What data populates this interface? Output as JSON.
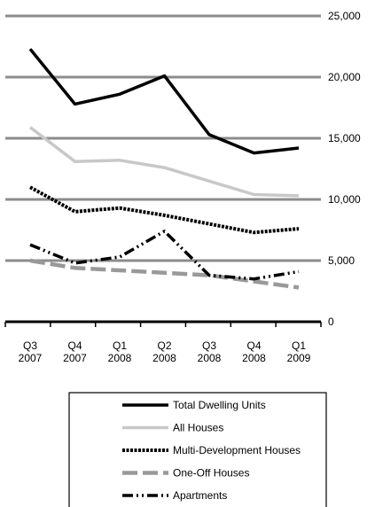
{
  "chart_data": {
    "type": "line",
    "title": "",
    "xlabel": "",
    "ylabel": "",
    "ylim": [
      0,
      25000
    ],
    "yticks": [
      0,
      5000,
      10000,
      15000,
      20000,
      25000
    ],
    "ytick_labels": [
      "0",
      "5,000",
      "10,000",
      "15,000",
      "20,000",
      "25,000"
    ],
    "categories": [
      [
        "Q3",
        "2007"
      ],
      [
        "Q4",
        "2007"
      ],
      [
        "Q1",
        "2008"
      ],
      [
        "Q2",
        "2008"
      ],
      [
        "Q3",
        "2008"
      ],
      [
        "Q4",
        "2008"
      ],
      [
        "Q1",
        "2009"
      ]
    ],
    "grid": "horizontal",
    "legend_position": "bottom",
    "series": [
      {
        "name": "Total Dwelling Units",
        "color": "#000000",
        "style": "solid",
        "values": [
          22300,
          17800,
          18600,
          20100,
          15300,
          13800,
          14200
        ]
      },
      {
        "name": "All Houses",
        "color": "#c8c8c8",
        "style": "solid",
        "values": [
          15900,
          13100,
          13200,
          12600,
          11500,
          10400,
          10300
        ]
      },
      {
        "name": "Multi-Development Houses",
        "color": "#000000",
        "style": "dotted",
        "values": [
          11000,
          9000,
          9300,
          8700,
          8000,
          7300,
          7600
        ]
      },
      {
        "name": "One-Off Houses",
        "color": "#999999",
        "style": "dashed",
        "values": [
          5000,
          4400,
          4200,
          4000,
          3800,
          3300,
          2800
        ]
      },
      {
        "name": "Apartments",
        "color": "#000000",
        "style": "dashdot",
        "values": [
          6300,
          4800,
          5300,
          7400,
          3800,
          3500,
          4100
        ]
      }
    ]
  }
}
